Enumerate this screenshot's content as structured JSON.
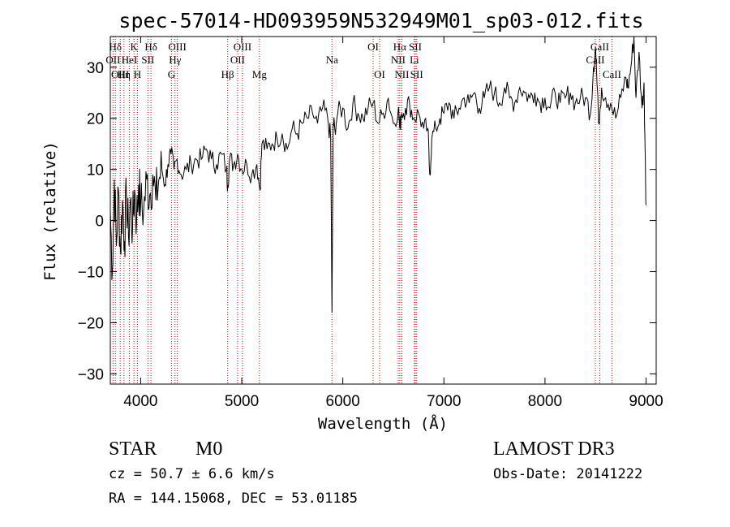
{
  "chart_data": {
    "type": "line",
    "title": "spec-57014-HD093959N532949M01_sp03-012.fits",
    "xlabel": "Wavelength (Å)",
    "ylabel": "Flux (relative)",
    "xlim": [
      3700,
      9100
    ],
    "ylim": [
      -32,
      36
    ],
    "x_ticks": [
      4000,
      5000,
      6000,
      7000,
      8000,
      9000
    ],
    "y_ticks": [
      -30,
      -20,
      -10,
      0,
      10,
      20,
      30
    ],
    "series": [
      {
        "name": "flux",
        "x": [
          3700,
          3720,
          3740,
          3760,
          3780,
          3800,
          3820,
          3840,
          3860,
          3880,
          3900,
          3920,
          3940,
          3960,
          3980,
          4000,
          4030,
          4060,
          4090,
          4120,
          4150,
          4180,
          4210,
          4240,
          4270,
          4300,
          4330,
          4360,
          4400,
          4450,
          4500,
          4550,
          4600,
          4650,
          4700,
          4750,
          4800,
          4850,
          4861,
          4880,
          4920,
          4960,
          5000,
          5050,
          5100,
          5150,
          5180,
          5200,
          5250,
          5300,
          5350,
          5400,
          5450,
          5500,
          5550,
          5600,
          5650,
          5700,
          5750,
          5800,
          5850,
          5880,
          5893,
          5905,
          5920,
          5950,
          6000,
          6050,
          6100,
          6150,
          6200,
          6250,
          6300,
          6350,
          6400,
          6450,
          6500,
          6550,
          6563,
          6580,
          6620,
          6660,
          6700,
          6750,
          6800,
          6840,
          6860,
          6880,
          6920,
          6960,
          7000,
          7050,
          7100,
          7150,
          7200,
          7250,
          7300,
          7350,
          7400,
          7450,
          7500,
          7550,
          7600,
          7650,
          7700,
          7750,
          7800,
          7850,
          7900,
          7950,
          8000,
          8050,
          8100,
          8150,
          8200,
          8250,
          8300,
          8350,
          8400,
          8450,
          8480,
          8500,
          8530,
          8560,
          8600,
          8650,
          8700,
          8750,
          8800,
          8820,
          8850,
          8880,
          8900,
          8930,
          8960,
          8980,
          8990,
          9000
        ],
        "values": [
          2,
          -10,
          8,
          -5,
          6,
          -6,
          4,
          -4,
          5,
          -3,
          4,
          -2,
          6,
          0,
          7,
          3,
          2,
          8,
          5,
          9,
          4,
          8,
          10,
          7,
          11,
          13,
          10,
          12,
          9,
          10,
          11,
          12,
          12,
          14,
          12,
          11,
          13,
          10,
          7,
          12,
          11,
          13,
          10,
          11,
          9,
          11,
          6,
          15,
          14,
          15,
          16,
          17,
          14,
          18,
          17,
          19,
          20,
          21,
          19,
          22,
          20,
          16,
          -18,
          19,
          18,
          21,
          22,
          18,
          23,
          21,
          20,
          22,
          23,
          19,
          21,
          24,
          19,
          22,
          18,
          21,
          22,
          23,
          20,
          21,
          18,
          18,
          9,
          16,
          18,
          20,
          21,
          23,
          20,
          22,
          24,
          23,
          25,
          22,
          24,
          26,
          25,
          23,
          26,
          24,
          23,
          26,
          25,
          24,
          25,
          23,
          24,
          22,
          25,
          23,
          24,
          25,
          23,
          24,
          24,
          21,
          30,
          34,
          19,
          26,
          24,
          23,
          20,
          24,
          28,
          26,
          30,
          36,
          24,
          33,
          22,
          27,
          14,
          3
        ]
      }
    ],
    "lines": [
      {
        "label": "Hδ",
        "x": 3750,
        "row": 1
      },
      {
        "label": "K",
        "x": 3934,
        "row": 1
      },
      {
        "label": "Hδ",
        "x": 4102,
        "row": 1
      },
      {
        "label": "OIII",
        "x": 4363,
        "row": 1
      },
      {
        "label": "OIII",
        "x": 5007,
        "row": 1
      },
      {
        "label": "OI",
        "x": 6300,
        "row": 1
      },
      {
        "label": "Hα",
        "x": 6563,
        "row": 1
      },
      {
        "label": "SII",
        "x": 6717,
        "row": 1
      },
      {
        "label": "CaII",
        "x": 8542,
        "row": 1
      },
      {
        "label": "OII",
        "x": 3727,
        "row": 2
      },
      {
        "label": "HeI",
        "x": 3889,
        "row": 2
      },
      {
        "label": "SII",
        "x": 4072,
        "row": 2
      },
      {
        "label": "Hγ",
        "x": 4340,
        "row": 2
      },
      {
        "label": "OII",
        "x": 4959,
        "row": 2
      },
      {
        "label": "Na",
        "x": 5893,
        "row": 2
      },
      {
        "label": "NII",
        "x": 6548,
        "row": 2
      },
      {
        "label": "Li",
        "x": 6708,
        "row": 2
      },
      {
        "label": "CaII",
        "x": 8498,
        "row": 2
      },
      {
        "label": "OIII",
        "x": 3798,
        "row": 3
      },
      {
        "label": "Hη",
        "x": 3835,
        "row": 3
      },
      {
        "label": "H",
        "x": 3968,
        "row": 3
      },
      {
        "label": "G",
        "x": 4305,
        "row": 3
      },
      {
        "label": "Hβ",
        "x": 4861,
        "row": 3
      },
      {
        "label": "Mg",
        "x": 5175,
        "row": 3
      },
      {
        "label": "OI",
        "x": 6364,
        "row": 3
      },
      {
        "label": "NII",
        "x": 6584,
        "row": 3
      },
      {
        "label": "SII",
        "x": 6731,
        "row": 3
      },
      {
        "label": "CaII",
        "x": 8662,
        "row": 3
      }
    ]
  },
  "info": {
    "class": "STAR",
    "subclass": "M0",
    "survey": "LAMOST DR3",
    "cz": "cz = 50.7 ± 6.6 km/s",
    "obsdate": "Obs-Date: 20141222",
    "radec": "RA = 144.15068, DEC =  53.01185"
  },
  "colors": {
    "spectrum": "#000000",
    "axis": "#000000",
    "line_marker": "#cc0000"
  }
}
